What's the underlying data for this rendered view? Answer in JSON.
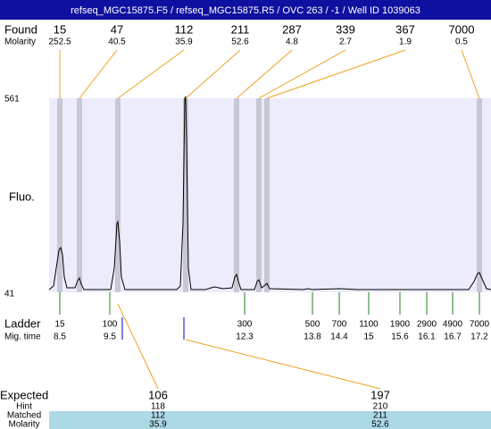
{
  "header": {
    "title": "refseq_MGC15875.F5 / refseq_MGC15875.R5 / OVC 263 / -1 / Well ID 1039063"
  },
  "found": {
    "label": "Found",
    "molarity_label": "Molarity",
    "peaks": [
      {
        "size": 15,
        "molarity": 252.5
      },
      {
        "size": 47,
        "molarity": 40.5
      },
      {
        "size": 112,
        "molarity": 35.9
      },
      {
        "size": 211,
        "molarity": 52.6
      },
      {
        "size": 287,
        "molarity": 4.8
      },
      {
        "size": 339,
        "molarity": 2.7
      },
      {
        "size": 367,
        "molarity": 1.9
      },
      {
        "size": 7000,
        "molarity": 0.5
      }
    ]
  },
  "axis": {
    "top": 561,
    "bottom": 41,
    "label": "Fluo."
  },
  "ladder": {
    "label": "Ladder",
    "mig_label": "Mig. time",
    "items": [
      {
        "size": 15,
        "mig": 8.5
      },
      {
        "size": 100,
        "mig": 9.5
      },
      {
        "size": 300,
        "mig": 12.3
      },
      {
        "size": 500,
        "mig": 13.8
      },
      {
        "size": 700,
        "mig": 14.4
      },
      {
        "size": 1100,
        "mig": 15
      },
      {
        "size": 1900,
        "mig": 15.6
      },
      {
        "size": 2900,
        "mig": 16.1
      },
      {
        "size": 4900,
        "mig": 16.7
      },
      {
        "size": 7000,
        "mig": 17.2
      }
    ]
  },
  "expected": {
    "labels": [
      "Expected",
      "Hint",
      "Matched",
      "Molarity"
    ],
    "columns": [
      {
        "expected": 106,
        "hint": 118,
        "matched": 112,
        "molarity": 35.9
      },
      {
        "expected": 197,
        "hint": 210,
        "matched": 211,
        "molarity": 52.6
      }
    ]
  }
}
